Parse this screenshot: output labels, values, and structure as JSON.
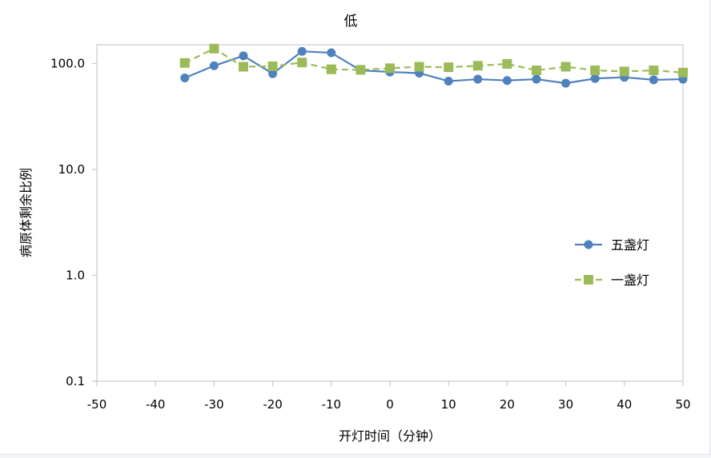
{
  "chart_data": {
    "type": "line",
    "title": "低",
    "xlabel": "开灯时间（分钟）",
    "ylabel": "病原体剩余比例",
    "xlim": [
      -50,
      50
    ],
    "x_ticks": [
      -50,
      -40,
      -30,
      -20,
      -10,
      0,
      10,
      20,
      30,
      40,
      50
    ],
    "x_tick_labels": [
      "-50",
      "-40",
      "-30",
      "-20",
      "-10",
      "0",
      "10",
      "20",
      "30",
      "40",
      "50"
    ],
    "y_scale": "log",
    "ylim": [
      0.1,
      150
    ],
    "y_ticks": [
      0.1,
      1,
      10,
      100
    ],
    "y_tick_labels": [
      "0.1",
      "1.0",
      "10.0",
      "100.0"
    ],
    "grid": false,
    "legend_position": "right",
    "series": [
      {
        "name": "五盏灯",
        "color": "#4f81bd",
        "marker": "circle",
        "line_style": "solid",
        "x": [
          -35,
          -30,
          -25,
          -20,
          -15,
          -10,
          -5,
          0,
          5,
          10,
          15,
          20,
          25,
          30,
          35,
          40,
          45,
          50
        ],
        "values": [
          73,
          95,
          118,
          80,
          130,
          126,
          86,
          83,
          81,
          68,
          71,
          69,
          71,
          65,
          72,
          74,
          70,
          71
        ]
      },
      {
        "name": "一盏灯",
        "color": "#9bbb59",
        "marker": "square",
        "line_style": "dashed",
        "x": [
          -35,
          -30,
          -25,
          -20,
          -15,
          -10,
          -5,
          0,
          5,
          10,
          15,
          20,
          25,
          30,
          35,
          40,
          45,
          50
        ],
        "values": [
          101,
          138,
          93,
          94,
          102,
          88,
          87,
          90,
          93,
          92,
          95,
          99,
          86,
          93,
          86,
          84,
          86,
          82
        ]
      }
    ]
  }
}
